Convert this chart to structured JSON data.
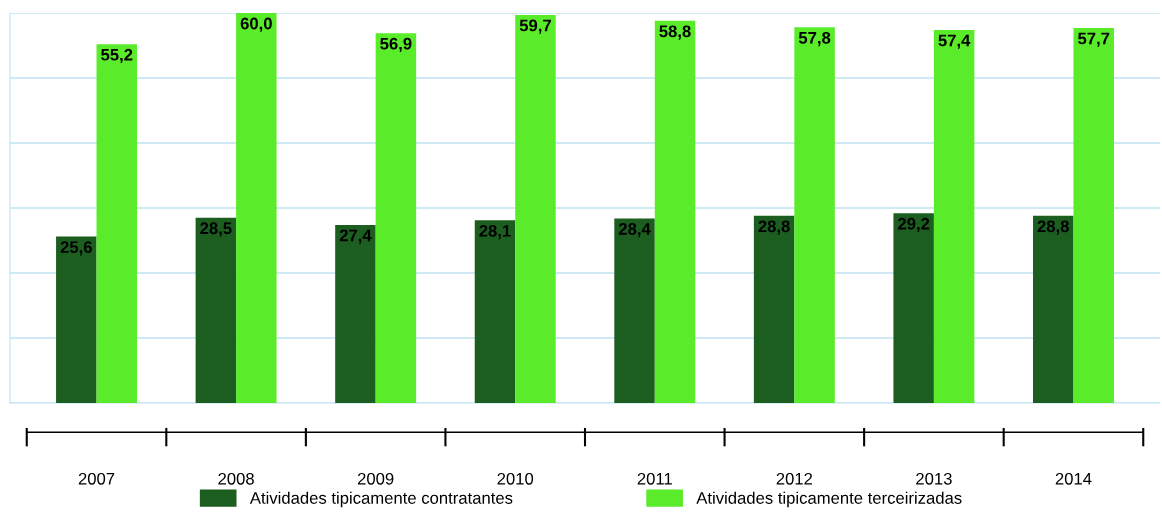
{
  "chart_data": {
    "type": "bar",
    "categories": [
      "2007",
      "2008",
      "2009",
      "2010",
      "2011",
      "2012",
      "2013",
      "2014"
    ],
    "series": [
      {
        "name": "Atividades tipicamente contratantes",
        "color": "#1b5e20",
        "values": [
          25.6,
          28.5,
          27.4,
          28.1,
          28.4,
          28.8,
          29.2,
          28.8
        ],
        "value_labels": [
          "25,6",
          "28,5",
          "27,4",
          "28,1",
          "28,4",
          "28,8",
          "29,2",
          "28,8"
        ]
      },
      {
        "name": "Atividades tipicamente terceirizadas",
        "color": "#5aeb2a",
        "values": [
          55.2,
          60.0,
          56.9,
          59.7,
          58.8,
          57.8,
          57.4,
          57.7
        ],
        "value_labels": [
          "55,2",
          "60,0",
          "56,9",
          "59,7",
          "58,8",
          "57,8",
          "57,4",
          "57,7"
        ]
      }
    ],
    "ylim": [
      0,
      60
    ],
    "yticks": [
      {
        "value": 0,
        "label": null
      },
      {
        "value": 10,
        "label": null
      },
      {
        "value": 20,
        "label": null
      },
      {
        "value": 30,
        "label": null
      },
      {
        "value": 40,
        "label": null
      },
      {
        "value": 50,
        "label": null
      },
      {
        "value": 60,
        "label": null
      }
    ],
    "tick_labels": "x",
    "grid": "y",
    "legend": "bottom"
  }
}
